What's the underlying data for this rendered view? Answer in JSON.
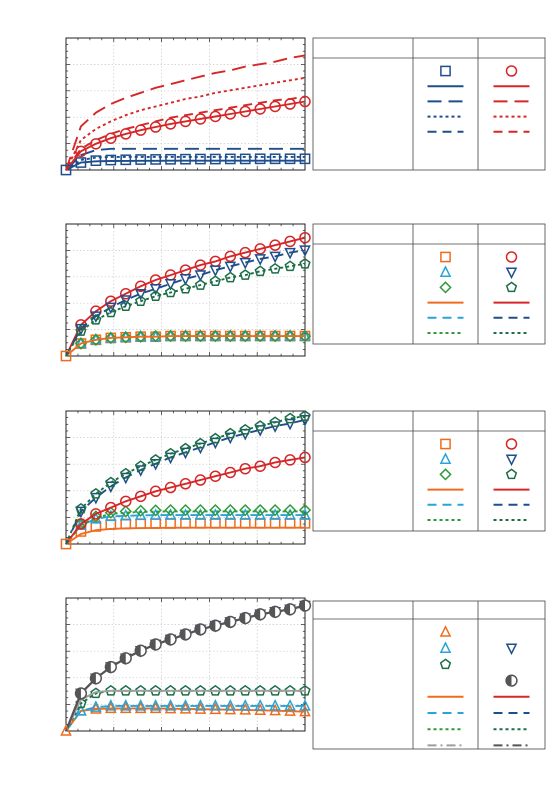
{
  "palette": {
    "navy": "#1f4e8c",
    "red": "#d62728",
    "orange": "#ef6c1e",
    "cyan": "#29a3d8",
    "green": "#2e9a3a",
    "darkgreen": "#1b6e45",
    "gray": "#555555",
    "lightgray": "#9e9e9e"
  },
  "chart_data": [
    {
      "type": "line",
      "title": "",
      "xlabel": "",
      "ylabel": "",
      "grid": true,
      "legend": "table-right",
      "series": [
        {
          "marker": "square",
          "dash": "none",
          "color": "navy",
          "values": [
            0,
            0.06,
            0.075,
            0.08,
            0.082,
            0.084,
            0.085,
            0.086,
            0.087,
            0.088,
            0.088,
            0.089,
            0.089,
            0.09,
            0.09,
            0.09,
            0.09
          ]
        },
        {
          "marker": "none",
          "dash": "solid",
          "color": "navy",
          "values": [
            0,
            0.06,
            0.07,
            0.072,
            0.073,
            0.074,
            0.074,
            0.075,
            0.075,
            0.075,
            0.075,
            0.075,
            0.075,
            0.075,
            0.075,
            0.075,
            0.075
          ]
        },
        {
          "marker": "none",
          "dash": "long",
          "color": "navy",
          "values": [
            0,
            0.12,
            0.16,
            0.17,
            0.17,
            0.17,
            0.17,
            0.17,
            0.17,
            0.17,
            0.17,
            0.17,
            0.17,
            0.17,
            0.17,
            0.17,
            0.17
          ]
        },
        {
          "marker": "none",
          "dash": "dot",
          "color": "navy",
          "values": [
            0,
            0.08,
            0.1,
            0.105,
            0.105,
            0.105,
            0.105,
            0.105,
            0.105,
            0.105,
            0.105,
            0.105,
            0.105,
            0.105,
            0.105,
            0.105,
            0.105
          ]
        },
        {
          "marker": "circle",
          "dash": "solid",
          "color": "red",
          "values": [
            0,
            0.15,
            0.21,
            0.255,
            0.29,
            0.32,
            0.345,
            0.37,
            0.39,
            0.41,
            0.43,
            0.45,
            0.47,
            0.49,
            0.51,
            0.53,
            0.55
          ]
        },
        {
          "marker": "none",
          "dash": "long",
          "color": "red",
          "values": [
            0,
            0.35,
            0.46,
            0.53,
            0.58,
            0.62,
            0.66,
            0.69,
            0.72,
            0.75,
            0.78,
            0.8,
            0.83,
            0.85,
            0.87,
            0.9,
            0.92
          ]
        },
        {
          "marker": "none",
          "dash": "dot",
          "color": "red",
          "values": [
            0,
            0.24,
            0.33,
            0.39,
            0.44,
            0.48,
            0.51,
            0.54,
            0.57,
            0.59,
            0.62,
            0.64,
            0.66,
            0.68,
            0.7,
            0.72,
            0.74
          ]
        },
        {
          "marker": "none",
          "dash": "dash",
          "color": "red",
          "values": [
            0,
            0.17,
            0.24,
            0.29,
            0.33,
            0.36,
            0.39,
            0.42,
            0.44,
            0.46,
            0.48,
            0.5,
            0.52,
            0.54,
            0.56,
            0.57,
            0.59
          ]
        }
      ],
      "legend_rows": [
        [
          {
            "marker": "square",
            "color": "navy"
          },
          {
            "marker": "circle",
            "color": "red"
          }
        ],
        [
          {
            "line": "solid",
            "color": "navy"
          },
          {
            "line": "solid",
            "color": "red"
          }
        ],
        [
          {
            "line": "long",
            "color": "navy"
          },
          {
            "line": "long",
            "color": "red"
          }
        ],
        [
          {
            "line": "dot",
            "color": "navy"
          },
          {
            "line": "dot",
            "color": "red"
          }
        ],
        [
          {
            "line": "dash",
            "color": "navy"
          },
          {
            "line": "dash",
            "color": "red"
          }
        ]
      ]
    },
    {
      "type": "line",
      "title": "",
      "xlabel": "",
      "ylabel": "",
      "grid": true,
      "legend": "table-right",
      "series": [
        {
          "marker": "square",
          "dash": "none",
          "color": "orange",
          "values": [
            0,
            0.1,
            0.13,
            0.145,
            0.15,
            0.155,
            0.155,
            0.16,
            0.16,
            0.16,
            0.16,
            0.16,
            0.16,
            0.16,
            0.16,
            0.16,
            0.16
          ]
        },
        {
          "marker": "triangle",
          "dash": "none",
          "color": "cyan",
          "values": [
            0,
            0.1,
            0.13,
            0.145,
            0.15,
            0.155,
            0.155,
            0.16,
            0.16,
            0.16,
            0.16,
            0.16,
            0.16,
            0.16,
            0.16,
            0.16,
            0.16
          ]
        },
        {
          "marker": "diamond",
          "dash": "none",
          "color": "green",
          "values": [
            0,
            0.1,
            0.13,
            0.145,
            0.15,
            0.155,
            0.16,
            0.16,
            0.16,
            0.16,
            0.16,
            0.16,
            0.16,
            0.16,
            0.16,
            0.16,
            0.16
          ]
        },
        {
          "marker": "none",
          "dash": "solid",
          "color": "orange",
          "values": [
            0,
            0.1,
            0.13,
            0.145,
            0.15,
            0.155,
            0.155,
            0.16,
            0.16,
            0.16,
            0.16,
            0.16,
            0.16,
            0.16,
            0.16,
            0.16,
            0.16
          ]
        },
        {
          "marker": "circle",
          "dash": "solid",
          "color": "red",
          "values": [
            0,
            0.25,
            0.36,
            0.44,
            0.5,
            0.56,
            0.61,
            0.65,
            0.69,
            0.73,
            0.76,
            0.8,
            0.83,
            0.86,
            0.89,
            0.92,
            0.95
          ]
        },
        {
          "marker": "tridown",
          "dash": "dash",
          "color": "navy",
          "values": [
            0,
            0.22,
            0.32,
            0.39,
            0.45,
            0.5,
            0.54,
            0.58,
            0.62,
            0.65,
            0.69,
            0.72,
            0.75,
            0.78,
            0.8,
            0.83,
            0.85
          ]
        },
        {
          "marker": "pentagon",
          "dash": "dot",
          "color": "darkgreen",
          "values": [
            0,
            0.2,
            0.29,
            0.35,
            0.4,
            0.44,
            0.48,
            0.51,
            0.54,
            0.57,
            0.6,
            0.63,
            0.65,
            0.68,
            0.7,
            0.72,
            0.74
          ]
        }
      ],
      "legend_rows": [
        [
          {
            "marker": "square",
            "color": "orange"
          },
          {
            "marker": "circle",
            "color": "red"
          }
        ],
        [
          {
            "marker": "triangle",
            "color": "cyan"
          },
          {
            "marker": "tridown",
            "color": "navy"
          }
        ],
        [
          {
            "marker": "diamond",
            "color": "green"
          },
          {
            "marker": "pentagon",
            "color": "darkgreen"
          }
        ],
        [
          {
            "line": "solid",
            "color": "orange"
          },
          {
            "line": "solid",
            "color": "red"
          }
        ],
        [
          {
            "line": "dash",
            "color": "cyan"
          },
          {
            "line": "dash",
            "color": "navy"
          }
        ],
        [
          {
            "line": "dot",
            "color": "green"
          },
          {
            "line": "dot",
            "color": "darkgreen"
          }
        ]
      ]
    },
    {
      "type": "line",
      "title": "",
      "xlabel": "",
      "ylabel": "",
      "grid": true,
      "legend": "table-right",
      "series": [
        {
          "marker": "square",
          "dash": "none",
          "color": "orange",
          "values": [
            0,
            0.1,
            0.14,
            0.155,
            0.16,
            0.162,
            0.163,
            0.164,
            0.165,
            0.165,
            0.165,
            0.165,
            0.165,
            0.165,
            0.165,
            0.165,
            0.165
          ]
        },
        {
          "marker": "none",
          "dash": "solid",
          "color": "orange",
          "values": [
            0,
            0.08,
            0.11,
            0.12,
            0.125,
            0.127,
            0.128,
            0.129,
            0.13,
            0.13,
            0.13,
            0.13,
            0.13,
            0.13,
            0.13,
            0.13,
            0.13
          ]
        },
        {
          "marker": "triangle",
          "dash": "none",
          "color": "cyan",
          "values": [
            0,
            0.15,
            0.2,
            0.22,
            0.225,
            0.228,
            0.23,
            0.23,
            0.23,
            0.23,
            0.23,
            0.23,
            0.23,
            0.23,
            0.23,
            0.23,
            0.23
          ]
        },
        {
          "marker": "none",
          "dash": "dash",
          "color": "cyan",
          "values": [
            0,
            0.15,
            0.2,
            0.22,
            0.225,
            0.228,
            0.23,
            0.23,
            0.23,
            0.23,
            0.23,
            0.23,
            0.23,
            0.23,
            0.23,
            0.23,
            0.23
          ]
        },
        {
          "marker": "diamond",
          "dash": "none",
          "color": "green",
          "values": [
            0,
            0.16,
            0.22,
            0.25,
            0.26,
            0.265,
            0.268,
            0.27,
            0.27,
            0.27,
            0.27,
            0.27,
            0.27,
            0.27,
            0.27,
            0.27,
            0.27
          ]
        },
        {
          "marker": "none",
          "dash": "dot",
          "color": "green",
          "values": [
            0,
            0.15,
            0.21,
            0.24,
            0.25,
            0.255,
            0.258,
            0.26,
            0.26,
            0.26,
            0.26,
            0.26,
            0.26,
            0.26,
            0.26,
            0.26,
            0.26
          ]
        },
        {
          "marker": "circle",
          "dash": "solid",
          "color": "red",
          "values": [
            0,
            0.16,
            0.24,
            0.29,
            0.34,
            0.38,
            0.42,
            0.45,
            0.48,
            0.51,
            0.54,
            0.57,
            0.6,
            0.62,
            0.65,
            0.67,
            0.69
          ]
        },
        {
          "marker": "tridown",
          "dash": "dash",
          "color": "navy",
          "values": [
            0,
            0.26,
            0.37,
            0.46,
            0.53,
            0.59,
            0.64,
            0.69,
            0.73,
            0.77,
            0.81,
            0.85,
            0.88,
            0.91,
            0.94,
            0.96,
            0.99
          ]
        },
        {
          "marker": "pentagon",
          "dash": "dot",
          "color": "darkgreen",
          "values": [
            0,
            0.28,
            0.4,
            0.49,
            0.56,
            0.62,
            0.67,
            0.72,
            0.76,
            0.8,
            0.84,
            0.88,
            0.91,
            0.94,
            0.97,
            1.0,
            1.02
          ]
        }
      ],
      "legend_rows": [
        [
          {
            "marker": "square",
            "color": "orange"
          },
          {
            "marker": "circle",
            "color": "red"
          }
        ],
        [
          {
            "marker": "triangle",
            "color": "cyan"
          },
          {
            "marker": "tridown",
            "color": "navy"
          }
        ],
        [
          {
            "marker": "diamond",
            "color": "green"
          },
          {
            "marker": "pentagon",
            "color": "darkgreen"
          }
        ],
        [
          {
            "line": "solid",
            "color": "orange"
          },
          {
            "line": "solid",
            "color": "red"
          }
        ],
        [
          {
            "line": "dash",
            "color": "cyan"
          },
          {
            "line": "dash",
            "color": "navy"
          }
        ],
        [
          {
            "line": "dot",
            "color": "green"
          },
          {
            "line": "dot",
            "color": "darkgreen"
          }
        ]
      ]
    },
    {
      "type": "line",
      "title": "",
      "xlabel": "",
      "ylabel": "",
      "grid": true,
      "legend": "table-right",
      "series": [
        {
          "marker": "triangle",
          "dash": "solid",
          "color": "orange",
          "values": [
            0,
            0.16,
            0.175,
            0.18,
            0.18,
            0.18,
            0.18,
            0.178,
            0.176,
            0.174,
            0.172,
            0.17,
            0.168,
            0.165,
            0.162,
            0.158,
            0.154
          ]
        },
        {
          "marker": "triangle",
          "dash": "dash",
          "color": "cyan",
          "values": [
            0,
            0.16,
            0.19,
            0.2,
            0.2,
            0.2,
            0.2,
            0.2,
            0.2,
            0.2,
            0.2,
            0.2,
            0.2,
            0.2,
            0.2,
            0.2,
            0.2
          ]
        },
        {
          "marker": "pentagon",
          "dash": "dot",
          "color": "darkgreen",
          "values": [
            0,
            0.22,
            0.3,
            0.32,
            0.32,
            0.32,
            0.32,
            0.32,
            0.32,
            0.32,
            0.32,
            0.32,
            0.32,
            0.32,
            0.32,
            0.32,
            0.32
          ]
        },
        {
          "marker": "none",
          "dash": "solid",
          "color": "lightgray",
          "values": [
            0,
            0.25,
            0.31,
            0.32,
            0.32,
            0.32,
            0.32,
            0.32,
            0.32,
            0.32,
            0.32,
            0.32,
            0.32,
            0.32,
            0.32,
            0.32,
            0.32
          ]
        },
        {
          "marker": "tridown",
          "dash": "dash",
          "color": "navy",
          "values": [
            0,
            0.3,
            0.42,
            0.51,
            0.58,
            0.64,
            0.69,
            0.73,
            0.77,
            0.81,
            0.84,
            0.87,
            0.9,
            0.93,
            0.95,
            0.97,
            1.0
          ]
        },
        {
          "marker": "none",
          "dash": "solid",
          "color": "red",
          "values": [
            0,
            0.3,
            0.42,
            0.51,
            0.58,
            0.64,
            0.69,
            0.73,
            0.77,
            0.81,
            0.84,
            0.87,
            0.9,
            0.93,
            0.95,
            0.97,
            1.0
          ]
        },
        {
          "marker": "halfcircle",
          "dash": "solid",
          "color": "gray",
          "values": [
            0,
            0.3,
            0.42,
            0.51,
            0.58,
            0.64,
            0.69,
            0.73,
            0.77,
            0.81,
            0.84,
            0.87,
            0.9,
            0.93,
            0.95,
            0.97,
            1.0
          ]
        }
      ],
      "legend_rows": [
        [
          {
            "marker": "triangle",
            "color": "orange"
          },
          {
            "marker": "none",
            "color": "navy"
          }
        ],
        [
          {
            "marker": "triangle",
            "color": "cyan"
          },
          {
            "marker": "tridown",
            "color": "navy"
          }
        ],
        [
          {
            "marker": "pentagon",
            "color": "darkgreen"
          },
          {
            "marker": "none",
            "color": "navy"
          }
        ],
        [
          {
            "marker": "none",
            "color": "navy"
          },
          {
            "marker": "halfcircle",
            "color": "gray"
          }
        ],
        [
          {
            "line": "solid",
            "color": "orange"
          },
          {
            "line": "solid",
            "color": "red"
          }
        ],
        [
          {
            "line": "dash",
            "color": "cyan"
          },
          {
            "line": "dash",
            "color": "navy"
          }
        ],
        [
          {
            "line": "dot",
            "color": "green"
          },
          {
            "line": "dot",
            "color": "darkgreen"
          }
        ],
        [
          {
            "line": "dashdot",
            "color": "lightgray"
          },
          {
            "line": "dashdot",
            "color": "gray"
          }
        ]
      ]
    }
  ]
}
